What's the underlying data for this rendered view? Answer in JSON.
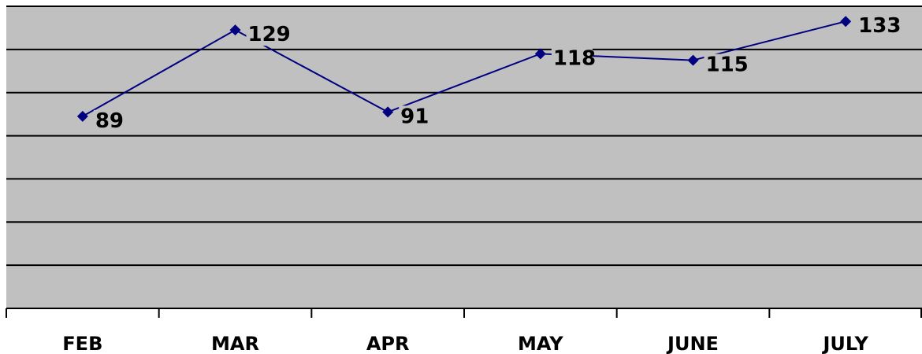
{
  "chart_data": {
    "type": "line",
    "categories": [
      "FEB",
      "MAR",
      "APR",
      "MAY",
      "JUNE",
      "JULY"
    ],
    "series": [
      {
        "values": [
          89,
          129,
          91,
          118,
          115,
          133
        ],
        "color": "#000080",
        "marker": "diamond"
      }
    ],
    "data_labels": [
      "89",
      "129",
      "91",
      "118",
      "115",
      "133"
    ],
    "title": "",
    "xlabel": "",
    "ylabel": "",
    "ylim": [
      0,
      140
    ],
    "y_axis_labels_visible": false,
    "grid": true,
    "legend": "none",
    "plot_background": "#c0c0c0"
  }
}
